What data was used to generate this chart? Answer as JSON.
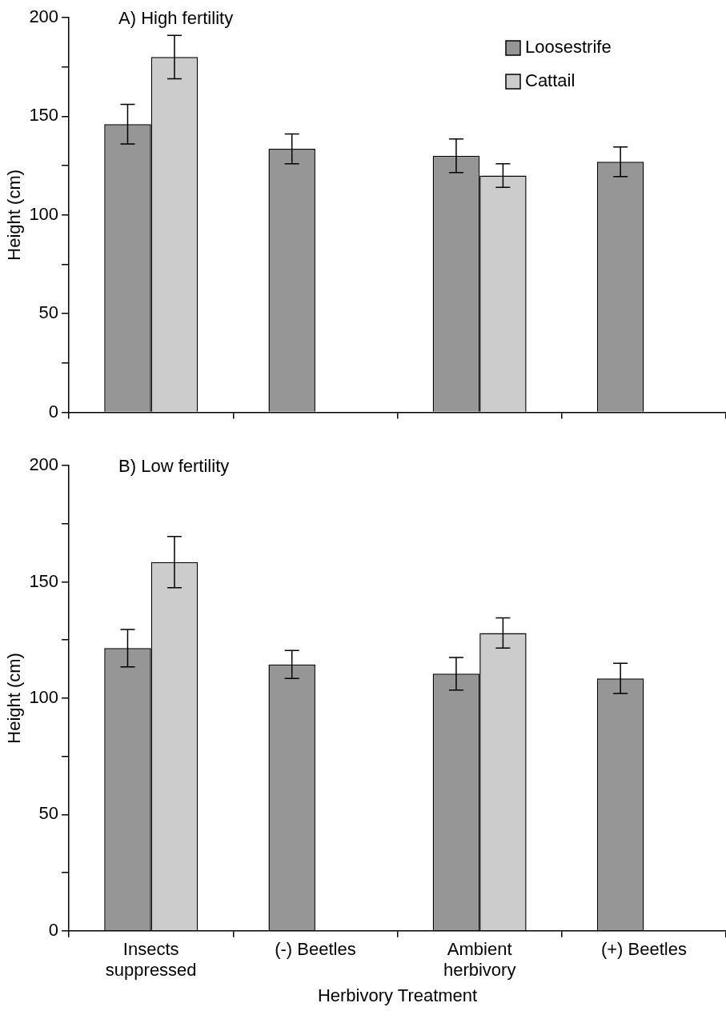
{
  "chart_data": [
    {
      "type": "bar",
      "title": "A) High fertility",
      "ylabel": "Height (cm)",
      "categories": [
        null,
        null,
        null,
        null
      ],
      "series": [
        {
          "name": "Loosestrife",
          "color": "#969696",
          "values": [
            146,
            133.5,
            130,
            127
          ],
          "errors": [
            10,
            7.5,
            8.5,
            7.5
          ]
        },
        {
          "name": "Cattail",
          "color": "#cccccc",
          "values": [
            180,
            null,
            120,
            null
          ],
          "errors": [
            11,
            null,
            6,
            null
          ]
        }
      ],
      "ylim": [
        0,
        200
      ],
      "yticks": [
        0,
        {
          "value": 25,
          "label": null
        },
        50,
        {
          "value": 75,
          "label": null
        },
        100,
        {
          "value": 125,
          "label": null
        },
        150,
        {
          "value": 175,
          "label": null
        },
        200
      ],
      "legend": "top right",
      "grid": false
    },
    {
      "type": "bar",
      "title": "B) Low fertility",
      "xlabel": "Herbivory Treatment",
      "ylabel": "Height (cm)",
      "categories": [
        "Insects suppressed",
        "(-) Beetles",
        "Ambient herbivory",
        "(+) Beetles"
      ],
      "series": [
        {
          "color": "#969696",
          "values": [
            121.5,
            114.5,
            110.5,
            108.5
          ],
          "errors": [
            8,
            6,
            7,
            6.5
          ]
        },
        {
          "color": "#cccccc",
          "values": [
            158.5,
            null,
            128,
            null
          ],
          "errors": [
            11,
            null,
            6.5,
            null
          ]
        }
      ],
      "ylim": [
        0,
        200
      ],
      "yticks": [
        0,
        {
          "value": 25,
          "label": null
        },
        50,
        {
          "value": 75,
          "label": null
        },
        100,
        {
          "value": 125,
          "label": null
        },
        150,
        {
          "value": 175,
          "label": null
        },
        200
      ],
      "legend": false,
      "grid": false
    }
  ]
}
